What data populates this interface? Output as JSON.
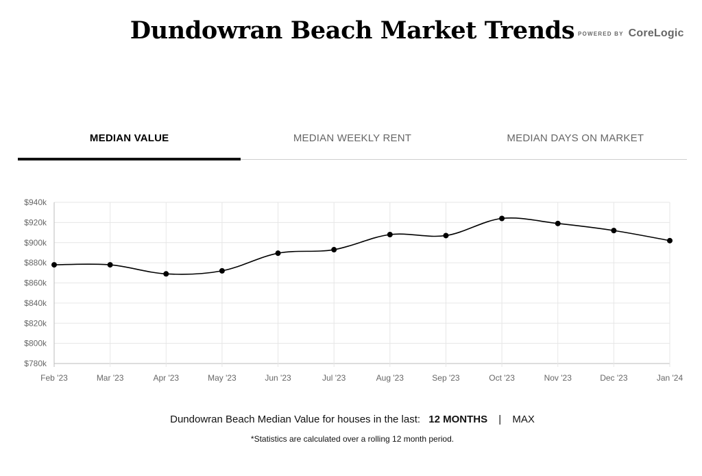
{
  "header": {
    "title": "Dundowran Beach Market Trends",
    "powered_label": "POWERED BY",
    "brand": "CoreLogic"
  },
  "tabs": [
    {
      "label": "MEDIAN VALUE",
      "active": true
    },
    {
      "label": "MEDIAN WEEKLY RENT",
      "active": false
    },
    {
      "label": "MEDIAN DAYS ON MARKET",
      "active": false
    }
  ],
  "chart_data": {
    "type": "line",
    "title": "",
    "xlabel": "",
    "ylabel": "",
    "categories": [
      "Feb '23",
      "Mar '23",
      "Apr '23",
      "May '23",
      "Jun '23",
      "Jul '23",
      "Aug '23",
      "Sep '23",
      "Oct '23",
      "Nov '23",
      "Dec '23",
      "Jan '24"
    ],
    "series": [
      {
        "values": [
          878000,
          878000,
          869000,
          872000,
          889500,
          893000,
          908000,
          907000,
          924000,
          919000,
          912000,
          902000
        ]
      }
    ],
    "ylim": [
      780000,
      940000
    ],
    "yticks": [
      780000,
      800000,
      820000,
      840000,
      860000,
      880000,
      900000,
      920000,
      940000
    ],
    "ytick_labels": [
      "$780k",
      "$800k",
      "$820k",
      "$840k",
      "$860k",
      "$880k",
      "$900k",
      "$920k",
      "$940k"
    ],
    "grid": true,
    "line_color": "#000000",
    "grid_color": "#e6e6e6"
  },
  "caption": {
    "prefix": "Dundowran Beach Median Value for houses in the last:",
    "selected_option": "12 MONTHS",
    "separator": "|",
    "other_option": "MAX"
  },
  "footnote": "*Statistics are calculated over a rolling 12 month period."
}
